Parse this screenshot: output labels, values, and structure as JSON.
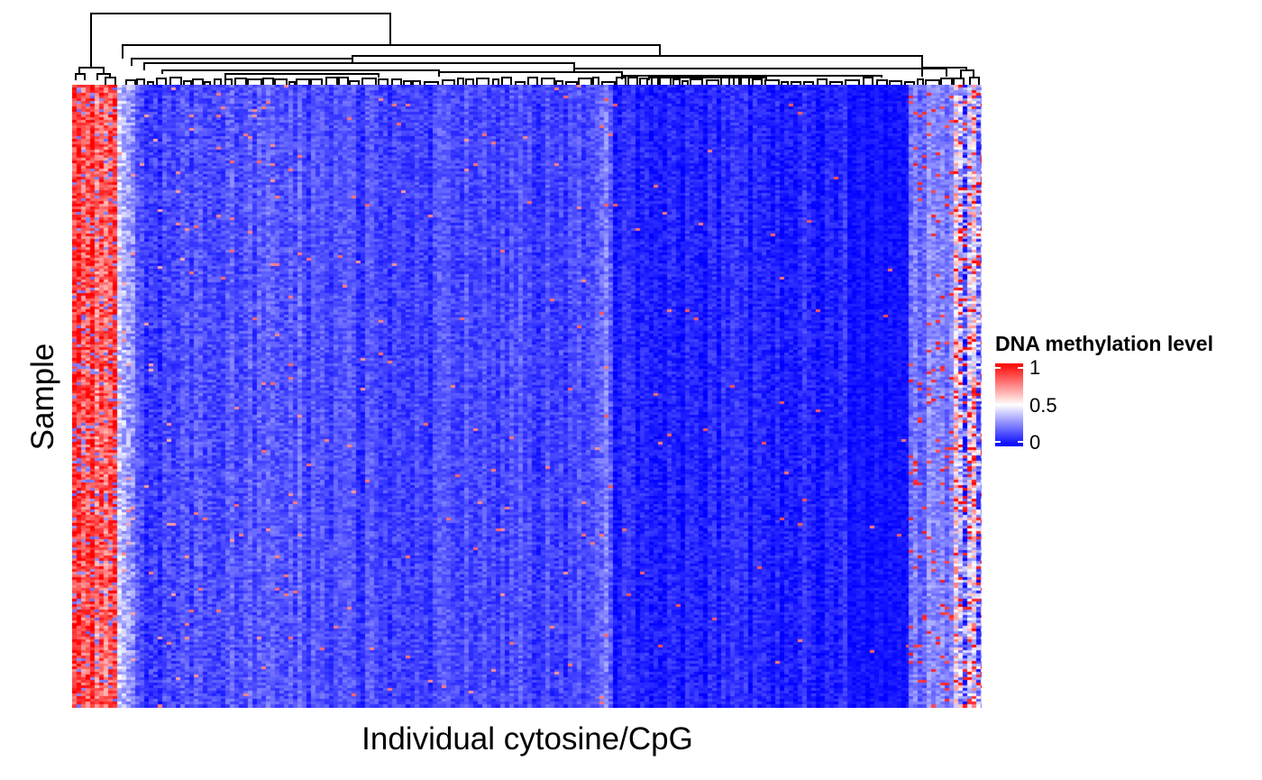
{
  "figure": {
    "x_axis_title": "Individual cytosine/CpG",
    "y_axis_title": "Sample"
  },
  "legend": {
    "title": "DNA methylation level",
    "ticks": [
      {
        "label": "1",
        "value": 1
      },
      {
        "label": "0.5",
        "value": 0.5
      },
      {
        "label": "0",
        "value": 0
      }
    ],
    "colors": {
      "low": "#0000ff",
      "mid": "#ffffff",
      "high": "#ff0000"
    }
  },
  "chart_data": {
    "type": "heatmap",
    "title": "",
    "xlabel": "Individual cytosine/CpG",
    "ylabel": "Sample",
    "x_tick_labels": [],
    "y_tick_labels": [],
    "value_range": [
      0,
      1
    ],
    "colorscale": [
      [
        0,
        "#0000ff"
      ],
      [
        0.5,
        "#ffffff"
      ],
      [
        1,
        "#ff0000"
      ]
    ],
    "column_dendrogram": true,
    "row_count_estimate": 230,
    "column_count_estimate": 200,
    "column_groups_mean_methylation": [
      {
        "group": "leftmost cluster",
        "mean_level": 0.85
      },
      {
        "group": "left transition",
        "mean_level": 0.35
      },
      {
        "group": "left-middle",
        "mean_level": 0.12
      },
      {
        "group": "central bulk",
        "mean_level": 0.15
      },
      {
        "group": "right-middle",
        "mean_level": 0.06
      },
      {
        "group": "far-right low",
        "mean_level": 0.03
      },
      {
        "group": "right variable band",
        "mean_level": 0.25
      },
      {
        "group": "rightmost cluster",
        "mean_level": 0.55
      }
    ]
  }
}
